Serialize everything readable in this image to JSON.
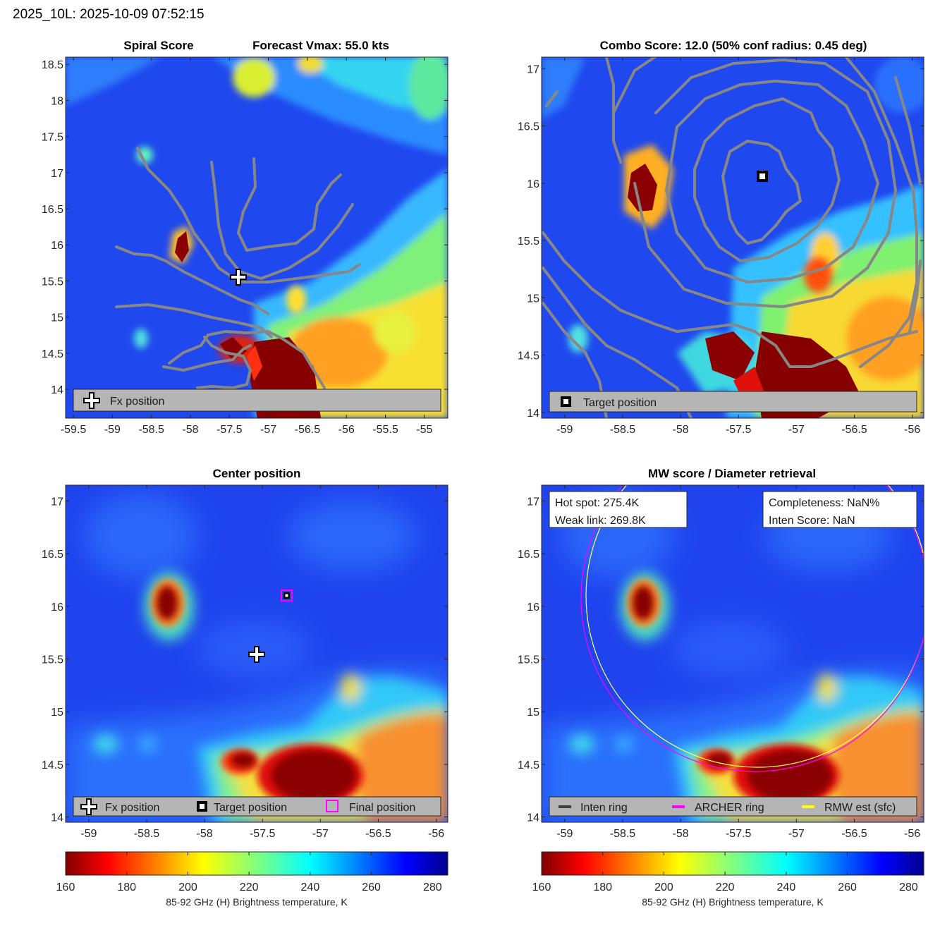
{
  "suptitle": "2025_10L: 2025-10-09 07:52:15",
  "colorbar": {
    "label": "85-92 GHz (H) Brightness temperature, K",
    "min": 160,
    "max": 285,
    "ticks": [
      160,
      180,
      200,
      220,
      240,
      260,
      280
    ],
    "colormap": "jet-reversed"
  },
  "chart_data": [
    {
      "type": "heatmap",
      "panel": "spiral-score",
      "title_left": "Spiral Score",
      "title_right": "Forecast Vmax: 55.0 kts",
      "xlim": [
        -59.6,
        -54.7
      ],
      "ylim": [
        13.6,
        18.6
      ],
      "xticks": [
        -59.5,
        -59,
        -58.5,
        -58,
        -57.5,
        -57,
        -56.5,
        -56,
        -55.5,
        -55
      ],
      "yticks": [
        14,
        14.5,
        15,
        15.5,
        16,
        16.5,
        17,
        17.5,
        18,
        18.5
      ],
      "markers": [
        {
          "type": "plus",
          "label": "Fx position",
          "x": -57.5,
          "y": 15.55
        }
      ],
      "legend": {
        "entries": [
          "Fx position"
        ],
        "placement": "bottom"
      }
    },
    {
      "type": "heatmap",
      "panel": "combo-score",
      "title": "Combo Score: 12.0  (50% conf radius: 0.45 deg)",
      "xlim": [
        -59.2,
        -55.9
      ],
      "ylim": [
        13.95,
        17.1
      ],
      "xticks": [
        -59,
        -58.5,
        -58,
        -57.5,
        -57,
        -56.5,
        -56
      ],
      "yticks": [
        14,
        14.5,
        15,
        15.5,
        16,
        16.5,
        17
      ],
      "markers": [
        {
          "type": "square",
          "label": "Target position",
          "x": -57.3,
          "y": 16.05
        }
      ],
      "legend": {
        "entries": [
          "Target position"
        ],
        "placement": "bottom"
      }
    },
    {
      "type": "heatmap",
      "panel": "center-position",
      "title": "Center position",
      "xlim": [
        -59.2,
        -55.9
      ],
      "ylim": [
        13.95,
        17.15
      ],
      "xticks": [
        -59,
        -58.5,
        -58,
        -57.5,
        -57,
        -56.5,
        -56
      ],
      "yticks": [
        14,
        14.5,
        15,
        15.5,
        16,
        16.5,
        17
      ],
      "markers": [
        {
          "type": "plus",
          "label": "Fx position",
          "x": -57.55,
          "y": 15.55
        },
        {
          "type": "square",
          "label": "Target position",
          "x": -57.3,
          "y": 16.08
        },
        {
          "type": "magenta-square",
          "label": "Final position",
          "x": -57.3,
          "y": 16.08
        }
      ],
      "legend": {
        "entries": [
          "Fx position",
          "Target position",
          "Final position"
        ],
        "placement": "bottom"
      }
    },
    {
      "type": "heatmap",
      "panel": "mw-score",
      "title": "MW score / Diameter retrieval",
      "xlim": [
        -59.2,
        -55.9
      ],
      "ylim": [
        13.95,
        17.15
      ],
      "xticks": [
        -59,
        -58.5,
        -58,
        -57.5,
        -57,
        -56.5,
        -56
      ],
      "yticks": [
        14,
        14.5,
        15,
        15.5,
        16,
        16.5,
        17
      ],
      "info_left": [
        "Hot spot: 275.4K",
        "Weak link: 269.8K"
      ],
      "info_right": [
        "Completeness: NaN%",
        "Inten Score: NaN"
      ],
      "legend": {
        "entries": [
          "Inten ring",
          "ARCHER ring",
          "RMW est (sfc)"
        ],
        "placement": "bottom"
      }
    }
  ]
}
